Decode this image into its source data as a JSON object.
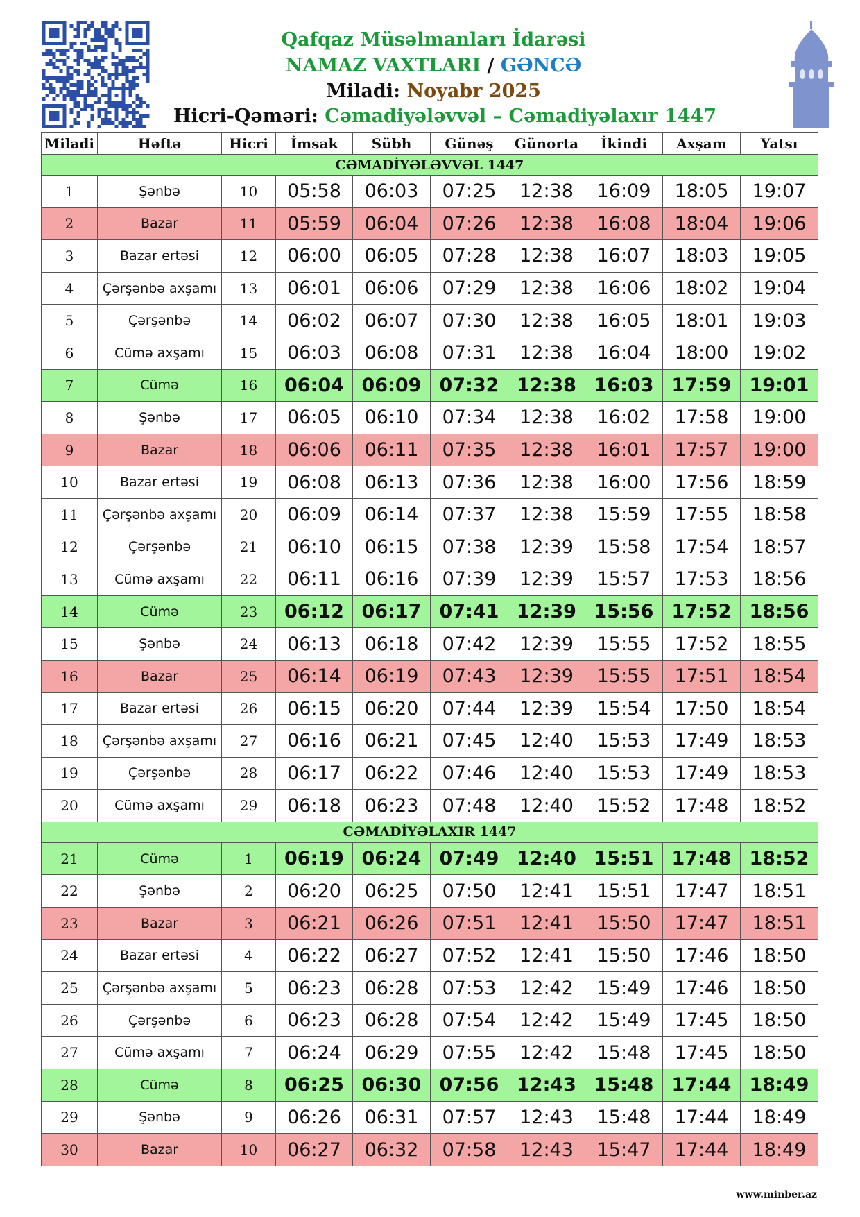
{
  "header": {
    "title": "Qafqaz Müsəlmanları İdarəsi",
    "subtitle": "NAMAZ VAXTLARI",
    "separator": "/",
    "city": "GƏNCƏ",
    "miladi_label": "Miladi:",
    "miladi_value": "Noyabr 2025",
    "hicri_label": "Hicri-Qəməri:",
    "hicri_value": "Cəmadiyələvvəl – Cəmadiyəlaxır 1447"
  },
  "table": {
    "columns": [
      "Miladi",
      "Həftə",
      "Hicri",
      "İmsak",
      "Sübh",
      "Günəş",
      "Günorta",
      "İkindi",
      "Axşam",
      "Yatsı"
    ],
    "sections": [
      {
        "title": "CƏMADİYƏLƏVVƏL 1447",
        "rows": [
          [
            1,
            "Şənbə",
            10,
            "05:58",
            "06:03",
            "07:25",
            "12:38",
            "16:09",
            "18:05",
            "19:07"
          ],
          [
            2,
            "Bazar",
            11,
            "05:59",
            "06:04",
            "07:26",
            "12:38",
            "16:08",
            "18:04",
            "19:06"
          ],
          [
            3,
            "Bazar ertəsi",
            12,
            "06:00",
            "06:05",
            "07:28",
            "12:38",
            "16:07",
            "18:03",
            "19:05"
          ],
          [
            4,
            "Çərşənbə axşamı",
            13,
            "06:01",
            "06:06",
            "07:29",
            "12:38",
            "16:06",
            "18:02",
            "19:04"
          ],
          [
            5,
            "Çərşənbə",
            14,
            "06:02",
            "06:07",
            "07:30",
            "12:38",
            "16:05",
            "18:01",
            "19:03"
          ],
          [
            6,
            "Cümə axşamı",
            15,
            "06:03",
            "06:08",
            "07:31",
            "12:38",
            "16:04",
            "18:00",
            "19:02"
          ],
          [
            7,
            "Cümə",
            16,
            "06:04",
            "06:09",
            "07:32",
            "12:38",
            "16:03",
            "17:59",
            "19:01"
          ],
          [
            8,
            "Şənbə",
            17,
            "06:05",
            "06:10",
            "07:34",
            "12:38",
            "16:02",
            "17:58",
            "19:00"
          ],
          [
            9,
            "Bazar",
            18,
            "06:06",
            "06:11",
            "07:35",
            "12:38",
            "16:01",
            "17:57",
            "19:00"
          ],
          [
            10,
            "Bazar ertəsi",
            19,
            "06:08",
            "06:13",
            "07:36",
            "12:38",
            "16:00",
            "17:56",
            "18:59"
          ],
          [
            11,
            "Çərşənbə axşamı",
            20,
            "06:09",
            "06:14",
            "07:37",
            "12:38",
            "15:59",
            "17:55",
            "18:58"
          ],
          [
            12,
            "Çərşənbə",
            21,
            "06:10",
            "06:15",
            "07:38",
            "12:39",
            "15:58",
            "17:54",
            "18:57"
          ],
          [
            13,
            "Cümə axşamı",
            22,
            "06:11",
            "06:16",
            "07:39",
            "12:39",
            "15:57",
            "17:53",
            "18:56"
          ],
          [
            14,
            "Cümə",
            23,
            "06:12",
            "06:17",
            "07:41",
            "12:39",
            "15:56",
            "17:52",
            "18:56"
          ],
          [
            15,
            "Şənbə",
            24,
            "06:13",
            "06:18",
            "07:42",
            "12:39",
            "15:55",
            "17:52",
            "18:55"
          ],
          [
            16,
            "Bazar",
            25,
            "06:14",
            "06:19",
            "07:43",
            "12:39",
            "15:55",
            "17:51",
            "18:54"
          ],
          [
            17,
            "Bazar ertəsi",
            26,
            "06:15",
            "06:20",
            "07:44",
            "12:39",
            "15:54",
            "17:50",
            "18:54"
          ],
          [
            18,
            "Çərşənbə axşamı",
            27,
            "06:16",
            "06:21",
            "07:45",
            "12:40",
            "15:53",
            "17:49",
            "18:53"
          ],
          [
            19,
            "Çərşənbə",
            28,
            "06:17",
            "06:22",
            "07:46",
            "12:40",
            "15:53",
            "17:49",
            "18:53"
          ],
          [
            20,
            "Cümə axşamı",
            29,
            "06:18",
            "06:23",
            "07:48",
            "12:40",
            "15:52",
            "17:48",
            "18:52"
          ]
        ]
      },
      {
        "title": "CƏMADİYƏLAXIR 1447",
        "rows": [
          [
            21,
            "Cümə",
            1,
            "06:19",
            "06:24",
            "07:49",
            "12:40",
            "15:51",
            "17:48",
            "18:52"
          ],
          [
            22,
            "Şənbə",
            2,
            "06:20",
            "06:25",
            "07:50",
            "12:41",
            "15:51",
            "17:47",
            "18:51"
          ],
          [
            23,
            "Bazar",
            3,
            "06:21",
            "06:26",
            "07:51",
            "12:41",
            "15:50",
            "17:47",
            "18:51"
          ],
          [
            24,
            "Bazar ertəsi",
            4,
            "06:22",
            "06:27",
            "07:52",
            "12:41",
            "15:50",
            "17:46",
            "18:50"
          ],
          [
            25,
            "Çərşənbə axşamı",
            5,
            "06:23",
            "06:28",
            "07:53",
            "12:42",
            "15:49",
            "17:46",
            "18:50"
          ],
          [
            26,
            "Çərşənbə",
            6,
            "06:23",
            "06:28",
            "07:54",
            "12:42",
            "15:49",
            "17:45",
            "18:50"
          ],
          [
            27,
            "Cümə axşamı",
            7,
            "06:24",
            "06:29",
            "07:55",
            "12:42",
            "15:48",
            "17:45",
            "18:50"
          ],
          [
            28,
            "Cümə",
            8,
            "06:25",
            "06:30",
            "07:56",
            "12:43",
            "15:48",
            "17:44",
            "18:49"
          ],
          [
            29,
            "Şənbə",
            9,
            "06:26",
            "06:31",
            "07:57",
            "12:43",
            "15:48",
            "17:44",
            "18:49"
          ],
          [
            30,
            "Bazar",
            10,
            "06:27",
            "06:32",
            "07:58",
            "12:43",
            "15:47",
            "17:44",
            "18:49"
          ]
        ]
      }
    ]
  },
  "footer": "www.minber.az"
}
